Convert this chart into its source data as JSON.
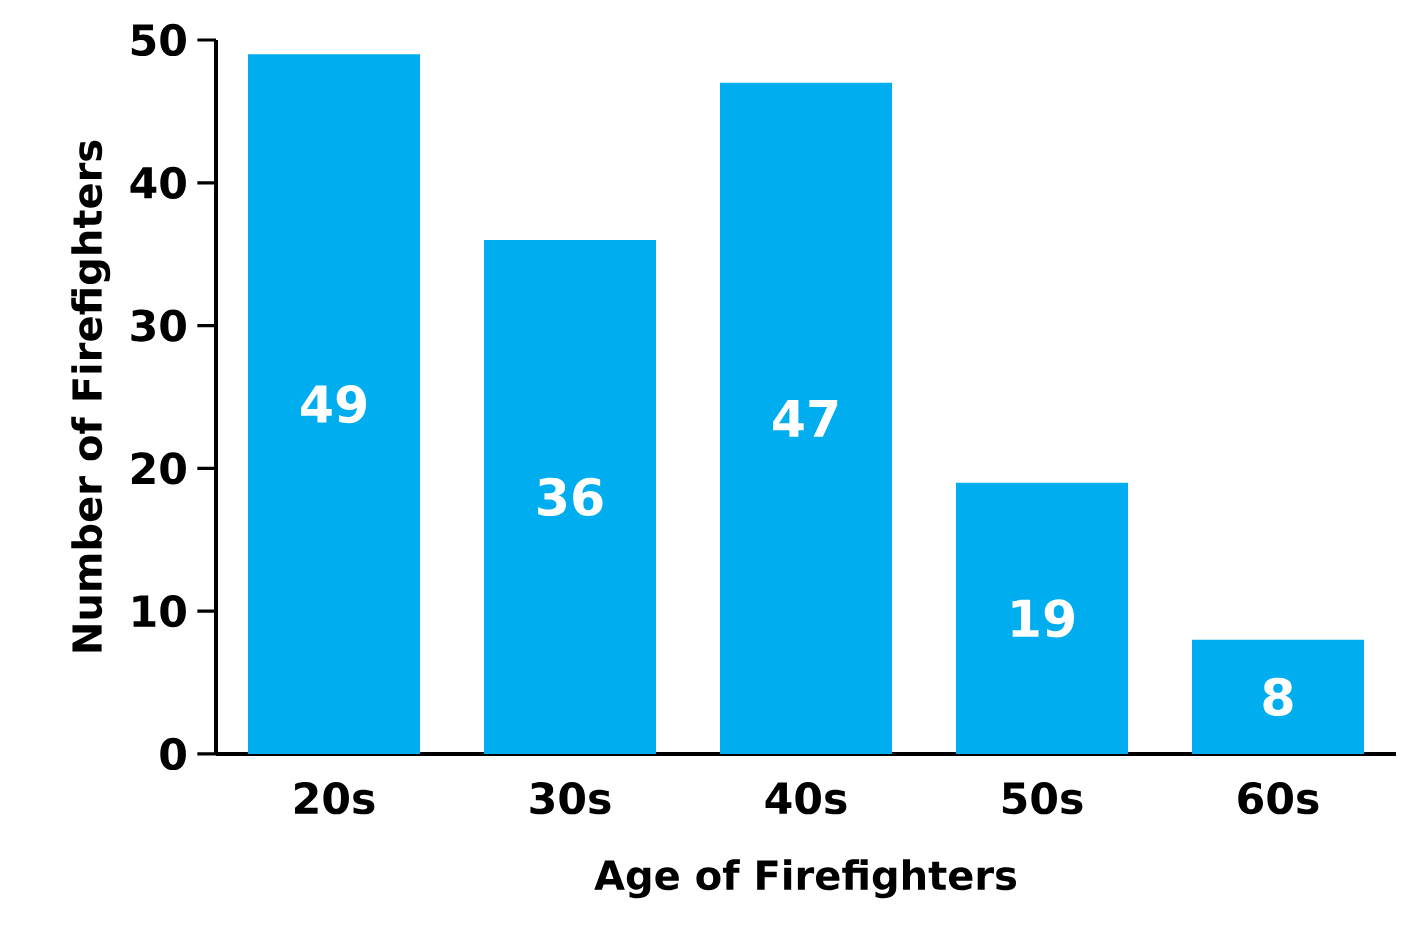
{
  "chart_data": {
    "type": "bar",
    "xlabel": "Age of Firefighters",
    "ylabel": "Number of Firefighters",
    "categories": [
      "20s",
      "30s",
      "40s",
      "50s",
      "60s"
    ],
    "values": [
      49,
      36,
      47,
      19,
      8
    ],
    "color": "#00aeef",
    "ylim": [
      0,
      50
    ],
    "yticks": [
      0,
      10,
      20,
      30,
      40,
      50
    ],
    "data_labels": true
  }
}
